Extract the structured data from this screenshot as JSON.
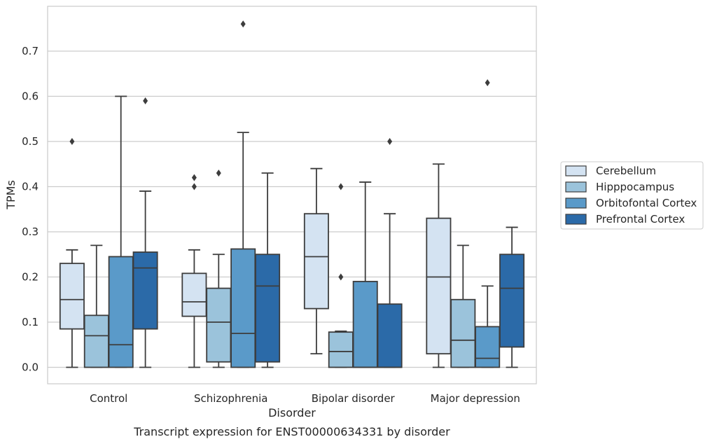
{
  "caption": "Transcript expression for ENST00000634331 by disorder",
  "chart_data": {
    "type": "box",
    "xlabel": "Disorder",
    "ylabel": "TPMs",
    "ylim": [
      -0.037,
      0.8
    ],
    "yticks": [
      0.0,
      0.1,
      0.2,
      0.3,
      0.4,
      0.5,
      0.6,
      0.7
    ],
    "ytick_labels": [
      "0.0",
      "0.1",
      "0.2",
      "0.3",
      "0.4",
      "0.5",
      "0.6",
      "0.7"
    ],
    "grid": "horizontal",
    "legend_position": "right",
    "categories": [
      "Control",
      "Schizophrenia",
      "Bipolar disorder",
      "Major depression"
    ],
    "series": [
      {
        "name": "Cerebellum",
        "color": "#d4e3f2",
        "boxes": [
          {
            "whisker_low": 0.0,
            "q1": 0.085,
            "median": 0.15,
            "q3": 0.23,
            "whisker_high": 0.26,
            "outliers": [
              0.5
            ]
          },
          {
            "whisker_low": 0.0,
            "q1": 0.113,
            "median": 0.145,
            "q3": 0.208,
            "whisker_high": 0.26,
            "outliers": [
              0.4,
              0.42
            ]
          },
          {
            "whisker_low": 0.03,
            "q1": 0.13,
            "median": 0.245,
            "q3": 0.34,
            "whisker_high": 0.44,
            "outliers": []
          },
          {
            "whisker_low": 0.0,
            "q1": 0.03,
            "median": 0.2,
            "q3": 0.33,
            "whisker_high": 0.45,
            "outliers": []
          }
        ]
      },
      {
        "name": "Hipppocampus",
        "color": "#9bc3db",
        "boxes": [
          {
            "whisker_low": 0.0,
            "q1": 0.0,
            "median": 0.07,
            "q3": 0.115,
            "whisker_high": 0.27,
            "outliers": []
          },
          {
            "whisker_low": 0.0,
            "q1": 0.012,
            "median": 0.1,
            "q3": 0.175,
            "whisker_high": 0.25,
            "outliers": [
              0.43
            ]
          },
          {
            "whisker_low": 0.0,
            "q1": 0.0,
            "median": 0.035,
            "q3": 0.078,
            "whisker_high": 0.08,
            "outliers": [
              0.2,
              0.4
            ]
          },
          {
            "whisker_low": 0.0,
            "q1": 0.0,
            "median": 0.06,
            "q3": 0.15,
            "whisker_high": 0.27,
            "outliers": []
          }
        ]
      },
      {
        "name": "Orbitofontal Cortex",
        "color": "#5a9ac9",
        "boxes": [
          {
            "whisker_low": 0.0,
            "q1": 0.0,
            "median": 0.05,
            "q3": 0.245,
            "whisker_high": 0.6,
            "outliers": []
          },
          {
            "whisker_low": 0.0,
            "q1": 0.0,
            "median": 0.075,
            "q3": 0.262,
            "whisker_high": 0.52,
            "outliers": [
              0.76
            ]
          },
          {
            "whisker_low": 0.0,
            "q1": 0.0,
            "median": 0.0,
            "q3": 0.19,
            "whisker_high": 0.41,
            "outliers": []
          },
          {
            "whisker_low": 0.0,
            "q1": 0.0,
            "median": 0.02,
            "q3": 0.09,
            "whisker_high": 0.18,
            "outliers": [
              0.63
            ]
          }
        ]
      },
      {
        "name": "Prefrontal Cortex",
        "color": "#2b6aa8",
        "boxes": [
          {
            "whisker_low": 0.0,
            "q1": 0.085,
            "median": 0.22,
            "q3": 0.255,
            "whisker_high": 0.39,
            "outliers": [
              0.59
            ]
          },
          {
            "whisker_low": 0.0,
            "q1": 0.012,
            "median": 0.18,
            "q3": 0.25,
            "whisker_high": 0.43,
            "outliers": []
          },
          {
            "whisker_low": 0.0,
            "q1": 0.0,
            "median": 0.0,
            "q3": 0.14,
            "whisker_high": 0.34,
            "outliers": [
              0.5
            ]
          },
          {
            "whisker_low": 0.0,
            "q1": 0.045,
            "median": 0.175,
            "q3": 0.25,
            "whisker_high": 0.31,
            "outliers": []
          }
        ]
      }
    ]
  }
}
